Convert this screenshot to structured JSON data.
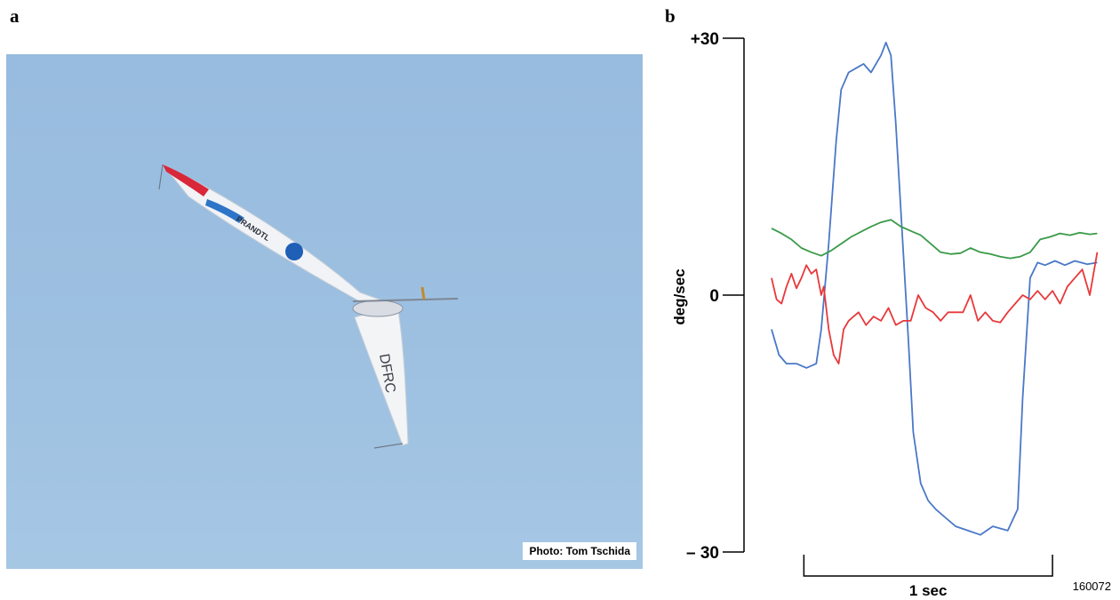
{
  "panels": {
    "a_label": "a",
    "b_label": "b"
  },
  "photo": {
    "credit": "Photo: Tom Tschida",
    "aircraft_markings": [
      "PRANDTL",
      "DFRC"
    ],
    "sky_color": "#9dc0e1",
    "wing_color": "#f3f4f6",
    "wingtip_color": "#d8283a",
    "stripe_color": "#2e74c8"
  },
  "figure_id": "160072",
  "chart_data": {
    "type": "line",
    "ylabel": "deg/sec",
    "ylim": [
      -30,
      30
    ],
    "ytick_labels": [
      "+30",
      "0",
      "– 30"
    ],
    "ytick_values": [
      30,
      0,
      -30
    ],
    "xlim": [
      0,
      1.33
    ],
    "time_scale_bar": {
      "label": "1 sec",
      "start": 0.13,
      "end": 1.13
    },
    "grid": false,
    "series": [
      {
        "color": "#4a78c8",
        "x": [
          0,
          0.03,
          0.06,
          0.1,
          0.14,
          0.18,
          0.2,
          0.23,
          0.26,
          0.28,
          0.31,
          0.34,
          0.37,
          0.4,
          0.44,
          0.46,
          0.48,
          0.5,
          0.53,
          0.55,
          0.57,
          0.6,
          0.63,
          0.66,
          0.7,
          0.74,
          0.79,
          0.84,
          0.89,
          0.95,
          0.99,
          1.01,
          1.04,
          1.07,
          1.1,
          1.14,
          1.18,
          1.22,
          1.27,
          1.31
        ],
        "y": [
          -4,
          -7,
          -8,
          -8,
          -8.5,
          -8,
          -4,
          6,
          18,
          24,
          26,
          26.5,
          27,
          26,
          28,
          29.5,
          28,
          20,
          5,
          -5,
          -16,
          -22,
          -24,
          -25,
          -26,
          -27,
          -27.5,
          -28,
          -27,
          -27.5,
          -25,
          -12,
          2,
          3.8,
          3.5,
          4,
          3.5,
          4,
          3.6,
          3.8
        ]
      },
      {
        "color": "#e8383a",
        "x": [
          0,
          0.02,
          0.04,
          0.06,
          0.08,
          0.1,
          0.12,
          0.14,
          0.16,
          0.18,
          0.2,
          0.21,
          0.23,
          0.25,
          0.27,
          0.29,
          0.31,
          0.33,
          0.35,
          0.38,
          0.41,
          0.44,
          0.47,
          0.5,
          0.53,
          0.56,
          0.59,
          0.62,
          0.65,
          0.68,
          0.71,
          0.74,
          0.77,
          0.8,
          0.83,
          0.86,
          0.89,
          0.92,
          0.95,
          0.98,
          1.01,
          1.04,
          1.07,
          1.1,
          1.13,
          1.16,
          1.19,
          1.22,
          1.25,
          1.28,
          1.31
        ],
        "y": [
          2,
          -0.5,
          -1,
          1,
          2.5,
          0.8,
          2,
          3.5,
          2.5,
          3,
          0,
          1,
          -4,
          -7,
          -8,
          -4,
          -3,
          -2.5,
          -2,
          -3.5,
          -2.5,
          -3,
          -1.5,
          -3.5,
          -3,
          -3,
          0,
          -1.5,
          -2,
          -3,
          -2,
          -2,
          -2,
          0,
          -3,
          -2,
          -3,
          -3.2,
          -2,
          -1,
          0,
          -0.5,
          0.5,
          -0.5,
          0.5,
          -1,
          1,
          2,
          3,
          0,
          5
        ]
      },
      {
        "color": "#3a9a48",
        "x": [
          0,
          0.04,
          0.08,
          0.12,
          0.16,
          0.2,
          0.24,
          0.28,
          0.32,
          0.36,
          0.4,
          0.44,
          0.48,
          0.52,
          0.56,
          0.6,
          0.64,
          0.68,
          0.72,
          0.76,
          0.8,
          0.84,
          0.88,
          0.92,
          0.96,
          1.0,
          1.04,
          1.08,
          1.12,
          1.16,
          1.2,
          1.24,
          1.28,
          1.31
        ],
        "y": [
          7.8,
          7.2,
          6.5,
          5.5,
          5,
          4.6,
          5.2,
          6,
          6.8,
          7.4,
          8,
          8.5,
          8.8,
          8,
          7.5,
          7,
          6,
          5,
          4.8,
          4.9,
          5.5,
          5,
          4.8,
          4.5,
          4.3,
          4.5,
          5,
          6.5,
          6.8,
          7.2,
          7,
          7.3,
          7.1,
          7.2
        ]
      }
    ]
  }
}
